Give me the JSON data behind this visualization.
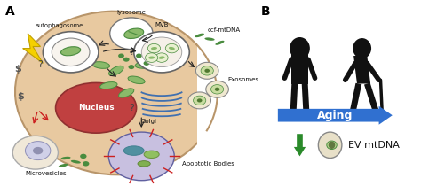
{
  "bg_color": "#ffffff",
  "panel_a_label": "A",
  "panel_b_label": "B",
  "cell_color": "#e8c9a0",
  "cell_border_color": "#b8956a",
  "nucleus_color": "#c04040",
  "nucleus_label": "Nucleus",
  "nucleus_text_color": "#ffffff",
  "lysosome_label": "lysosome",
  "autophagosome_label": "autophagosome",
  "mvb_label": "MVB",
  "ccf_label": "ccf-mtDNA",
  "exosomes_label": "Exosomes",
  "golgi_label": "Golgi",
  "microvesicles_label": "Microvesicles",
  "apoptotic_label": "Apoptotic Bodies",
  "aging_label": "Aging",
  "ev_label": "EV mtDNA",
  "arrow_color": "#3070d0",
  "down_arrow_color": "#2a8a2a",
  "mito_green": "#4a8c3f",
  "mito_light": "#8aba6a",
  "golgi_blue": "#4070b0",
  "figure_width": 4.74,
  "figure_height": 2.1,
  "dpi": 100
}
